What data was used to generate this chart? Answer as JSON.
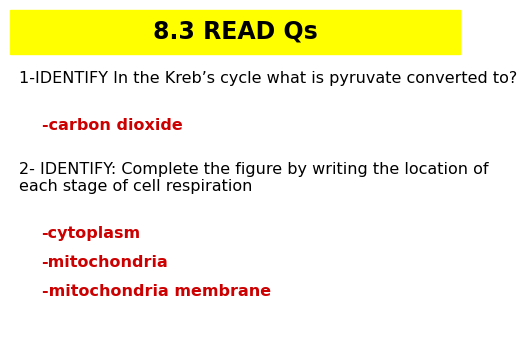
{
  "title": "8.3 READ Qs",
  "title_bg": "#ffff00",
  "title_color": "#000000",
  "title_fontsize": 17,
  "q1_text": "1-IDENTIFY In the Kreb’s cycle what is pyruvate converted to?",
  "q1_answer": "-carbon dioxide",
  "q2_text": "2- IDENTIFY: Complete the figure by writing the location of\neach stage of cell respiration",
  "q2_answers": [
    "-cytoplasm",
    "-mitochondria",
    "-mitochondria membrane"
  ],
  "answer_color": "#cc0000",
  "body_color": "#000000",
  "bg_color": "#ffffff",
  "body_fontsize": 11.5,
  "answer_fontsize": 11.5
}
